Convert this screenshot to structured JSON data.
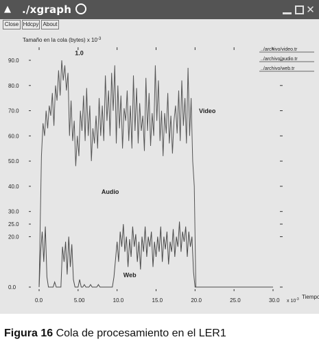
{
  "window": {
    "title": "./xgraph",
    "toolbar": {
      "close_label": "Close",
      "hdcpy_label": "Hdcpy",
      "about_label": "About"
    }
  },
  "chart_data": {
    "type": "line",
    "ylabel": "Tamaño en la cola (bytes) x 10^-3",
    "ylabel_prefix": "Tamaño en la cola (bytes) x 10",
    "ylabel_exp": "-3",
    "xlabel": "Tiempo",
    "xlabel_prefix": "x 10",
    "xlabel_exp": "-3",
    "xlim": [
      0,
      30
    ],
    "ylim": [
      0,
      90
    ],
    "x_ticks": [
      {
        "value": 0,
        "label": "0.0"
      },
      {
        "value": 5,
        "label": "5.00"
      },
      {
        "value": 10,
        "label": "10.0"
      },
      {
        "value": 15,
        "label": "15.0"
      },
      {
        "value": 20,
        "label": "20.0"
      },
      {
        "value": 25,
        "label": "25.0"
      },
      {
        "value": 30,
        "label": "30.0"
      }
    ],
    "y_ticks": [
      {
        "value": 0,
        "label": "0.0"
      },
      {
        "value": 20,
        "label": "20.0"
      },
      {
        "value": 25,
        "label": "25.0"
      },
      {
        "value": 30,
        "label": "30.0"
      },
      {
        "value": 40,
        "label": "40.0"
      },
      {
        "value": 50,
        "label": "50.0"
      },
      {
        "value": 60,
        "label": "60.0"
      },
      {
        "value": 70,
        "label": "70.0"
      },
      {
        "value": 80,
        "label": "80.0"
      },
      {
        "value": 90,
        "label": "90.0"
      }
    ],
    "legend_position": "top-right",
    "legend": [
      "../archivo/video.tr",
      "../archivo/audio.tr",
      "../archivo/web.tr"
    ],
    "annotations": [
      {
        "text": "1.0",
        "x": 4.6,
        "y": 92
      },
      {
        "text": "Video",
        "x": 20.5,
        "y": 69
      },
      {
        "text": "Audio",
        "x": 8.0,
        "y": 37
      },
      {
        "text": "Web",
        "x": 10.8,
        "y": 4
      }
    ],
    "series": [
      {
        "name": "../archivo/video.tr",
        "x": [
          0.0,
          0.3,
          0.5,
          0.7,
          0.9,
          1.1,
          1.3,
          1.5,
          1.7,
          1.9,
          2.1,
          2.3,
          2.5,
          2.7,
          2.9,
          3.1,
          3.3,
          3.5,
          3.7,
          3.9,
          4.1,
          4.3,
          4.5,
          4.7,
          4.9,
          5.1,
          5.3,
          5.5,
          5.7,
          5.9,
          6.1,
          6.3,
          6.5,
          6.7,
          6.9,
          7.1,
          7.3,
          7.5,
          7.7,
          7.9,
          8.1,
          8.3,
          8.5,
          8.7,
          8.9,
          9.1,
          9.3,
          9.5,
          9.7,
          9.9,
          10.1,
          10.3,
          10.5,
          10.7,
          10.9,
          11.1,
          11.3,
          11.5,
          11.7,
          11.9,
          12.1,
          12.3,
          12.5,
          12.7,
          12.9,
          13.1,
          13.3,
          13.5,
          13.7,
          13.9,
          14.1,
          14.3,
          14.5,
          14.7,
          14.9,
          15.1,
          15.3,
          15.5,
          15.7,
          15.9,
          16.1,
          16.3,
          16.5,
          16.7,
          16.9,
          17.1,
          17.3,
          17.5,
          17.7,
          17.9,
          18.1,
          18.3,
          18.5,
          18.7,
          18.9,
          19.1,
          19.3,
          19.5,
          19.7,
          19.9,
          20.1,
          20.2,
          20.5,
          24,
          30
        ],
        "y": [
          0,
          52,
          65,
          60,
          70,
          63,
          72,
          68,
          77,
          64,
          80,
          74,
          86,
          76,
          90,
          82,
          88,
          78,
          85,
          60,
          74,
          58,
          66,
          48,
          60,
          52,
          70,
          62,
          76,
          58,
          79,
          60,
          72,
          50,
          63,
          57,
          68,
          55,
          75,
          60,
          72,
          58,
          84,
          66,
          78,
          60,
          85,
          70,
          88,
          57,
          80,
          63,
          76,
          55,
          71,
          66,
          78,
          58,
          72,
          55,
          84,
          62,
          79,
          57,
          73,
          62,
          68,
          54,
          83,
          62,
          77,
          56,
          69,
          60,
          88,
          66,
          82,
          58,
          70,
          52,
          69,
          61,
          77,
          57,
          68,
          53,
          66,
          72,
          61,
          78,
          58,
          82,
          64,
          75,
          57,
          87,
          60,
          75,
          50,
          40,
          0,
          0,
          0,
          0,
          0
        ]
      },
      {
        "name": "../archivo/audio.tr",
        "x": [],
        "y": []
      },
      {
        "name": "../archivo/web.tr",
        "x": [
          0.0,
          0.2,
          0.4,
          0.6,
          0.8,
          1.0,
          1.2,
          1.4,
          1.6,
          1.8,
          2.0,
          2.2,
          2.4,
          2.6,
          2.8,
          3.0,
          3.2,
          3.4,
          3.6,
          3.8,
          4.0,
          4.2,
          4.4,
          4.6,
          4.8,
          5.0,
          5.2,
          5.4,
          5.6,
          5.8,
          6.0,
          6.2,
          6.4,
          6.6,
          6.8,
          7.0,
          7.2,
          7.4,
          7.6,
          7.8,
          8.0,
          8.2,
          8.4,
          8.6,
          8.8,
          9.0,
          9.2,
          9.4,
          9.6,
          9.8,
          10.0,
          10.2,
          10.4,
          10.6,
          10.8,
          11.0,
          11.2,
          11.4,
          11.6,
          11.8,
          12.0,
          12.2,
          12.4,
          12.6,
          12.8,
          13.0,
          13.2,
          13.4,
          13.6,
          13.8,
          14.0,
          14.2,
          14.4,
          14.6,
          14.8,
          15.0,
          15.2,
          15.4,
          15.6,
          15.8,
          16.0,
          16.2,
          16.4,
          16.6,
          16.8,
          17.0,
          17.2,
          17.4,
          17.6,
          17.8,
          18.0,
          18.2,
          18.4,
          18.6,
          18.8,
          19.0,
          19.2,
          19.4,
          19.6,
          19.8,
          20.0,
          20.2,
          20.5,
          25,
          30
        ],
        "y": [
          0,
          14,
          22,
          10,
          24,
          4,
          0,
          0,
          0,
          0,
          2,
          0,
          0,
          0,
          0,
          16,
          10,
          18,
          5,
          20,
          8,
          17,
          3,
          0,
          0,
          0,
          3,
          0,
          0,
          1,
          0,
          0,
          0,
          1,
          0,
          0,
          0,
          0,
          1,
          0,
          0,
          0,
          0,
          0,
          0,
          0,
          0,
          0,
          4,
          11,
          18,
          10,
          22,
          16,
          25,
          14,
          20,
          8,
          19,
          12,
          24,
          16,
          21,
          10,
          18,
          7,
          20,
          14,
          24,
          12,
          20,
          16,
          22,
          8,
          18,
          12,
          20,
          14,
          24,
          10,
          20,
          15,
          22,
          9,
          18,
          14,
          23,
          12,
          20,
          16,
          26,
          14,
          22,
          18,
          24,
          12,
          22,
          16,
          20,
          6,
          0,
          0,
          0,
          0,
          0
        ]
      }
    ]
  },
  "caption": {
    "label": "Figura 16",
    "text": "Cola de procesamiento en el LER1"
  }
}
